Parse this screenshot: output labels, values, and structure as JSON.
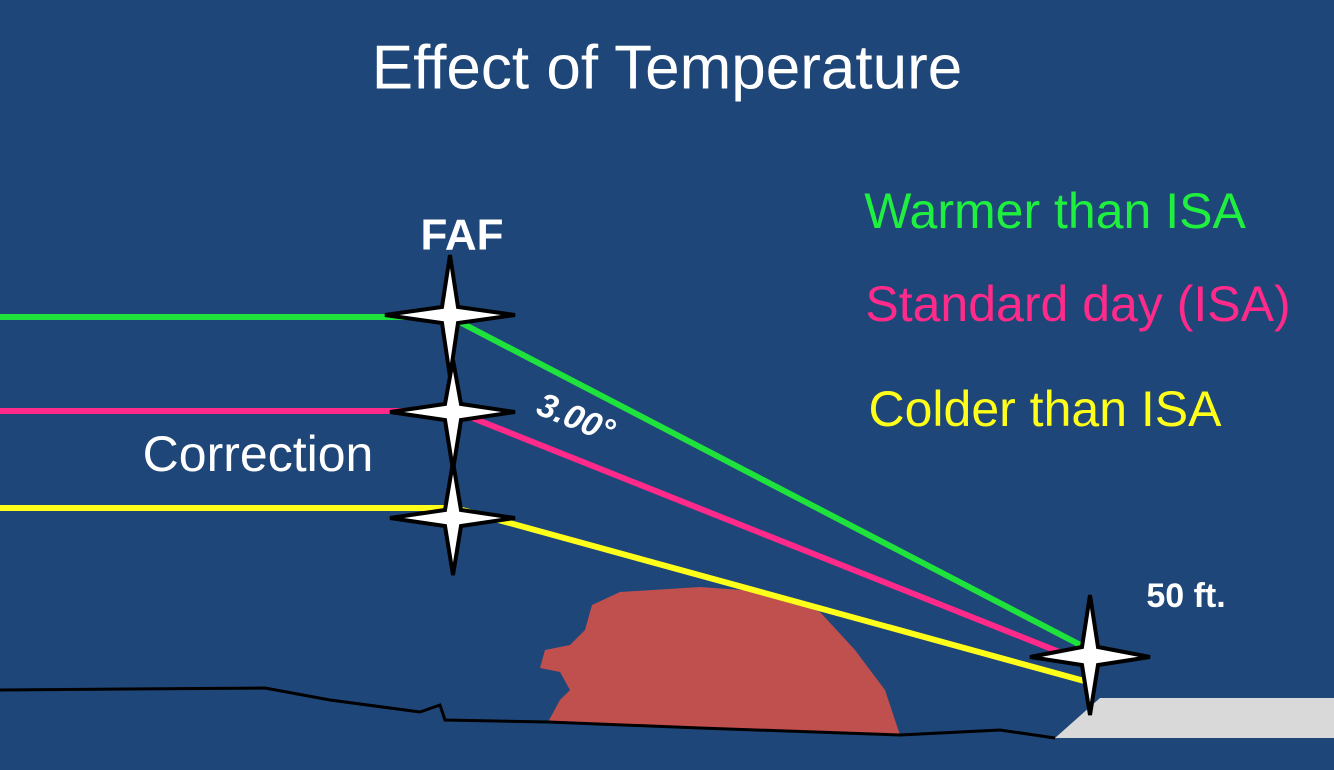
{
  "header": {
    "title": "Effect of Temperature"
  },
  "labels": {
    "faf": "FAF",
    "correction": "Correction",
    "angle": "3.00°",
    "height": "50 ft."
  },
  "legend": {
    "items": [
      {
        "label": "Warmer than ISA"
      },
      {
        "label": "Standard day (ISA)"
      },
      {
        "label": "Colder than ISA"
      }
    ]
  }
}
